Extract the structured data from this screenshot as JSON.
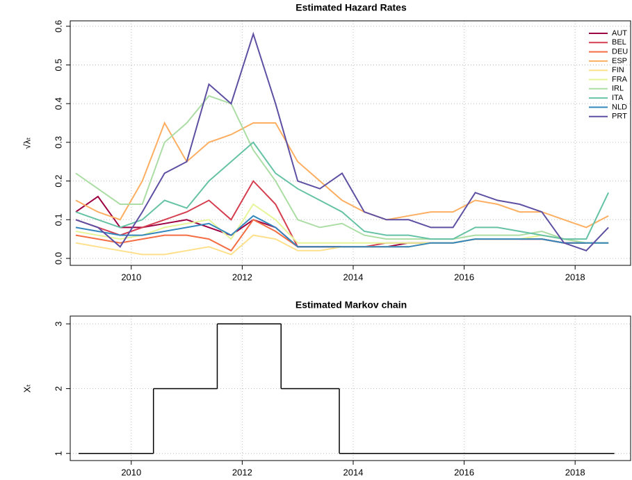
{
  "chart_data": [
    {
      "type": "line",
      "title": "Estimated Hazard Rates",
      "ylabel": "√λₜ",
      "x": [
        2009.0,
        2009.4,
        2009.8,
        2010.2,
        2010.6,
        2011.0,
        2011.4,
        2011.8,
        2012.2,
        2012.6,
        2013.0,
        2013.4,
        2013.8,
        2014.2,
        2014.6,
        2015.0,
        2015.4,
        2015.8,
        2016.2,
        2016.6,
        2017.0,
        2017.4,
        2017.8,
        2018.2,
        2018.6
      ],
      "series": [
        {
          "name": "AUT",
          "color": "#9E0142",
          "values": [
            0.12,
            0.16,
            0.08,
            0.08,
            0.09,
            0.1,
            0.08,
            0.06,
            0.1,
            0.08,
            0.03,
            0.03,
            0.03,
            0.03,
            0.03,
            0.04,
            0.04,
            0.04,
            0.05,
            0.05,
            0.05,
            0.05,
            0.04,
            0.04,
            0.04
          ]
        },
        {
          "name": "BEL",
          "color": "#D53E4F",
          "values": [
            0.1,
            0.08,
            0.06,
            0.08,
            0.1,
            0.12,
            0.15,
            0.1,
            0.2,
            0.14,
            0.03,
            0.03,
            0.03,
            0.03,
            0.04,
            0.04,
            0.04,
            0.04,
            0.05,
            0.05,
            0.05,
            0.05,
            0.04,
            0.04,
            0.04
          ]
        },
        {
          "name": "DEU",
          "color": "#F46D43",
          "values": [
            0.06,
            0.05,
            0.04,
            0.05,
            0.06,
            0.06,
            0.05,
            0.02,
            0.1,
            0.07,
            0.03,
            0.03,
            0.03,
            0.03,
            0.03,
            0.03,
            0.04,
            0.04,
            0.05,
            0.05,
            0.05,
            0.05,
            0.04,
            0.04,
            0.04
          ]
        },
        {
          "name": "ESP",
          "color": "#FDAE61",
          "values": [
            0.15,
            0.12,
            0.1,
            0.2,
            0.35,
            0.25,
            0.3,
            0.32,
            0.35,
            0.35,
            0.25,
            0.2,
            0.15,
            0.12,
            0.1,
            0.11,
            0.12,
            0.12,
            0.15,
            0.14,
            0.12,
            0.12,
            0.1,
            0.08,
            0.11
          ]
        },
        {
          "name": "FIN",
          "color": "#FEE08B",
          "values": [
            0.04,
            0.03,
            0.02,
            0.01,
            0.01,
            0.02,
            0.03,
            0.01,
            0.06,
            0.05,
            0.02,
            0.02,
            0.03,
            0.03,
            0.03,
            0.03,
            0.04,
            0.04,
            0.05,
            0.05,
            0.05,
            0.06,
            0.05,
            0.04,
            0.04
          ]
        },
        {
          "name": "FRA",
          "color": "#E6F598",
          "values": [
            0.07,
            0.06,
            0.05,
            0.06,
            0.08,
            0.09,
            0.1,
            0.05,
            0.14,
            0.1,
            0.04,
            0.04,
            0.04,
            0.04,
            0.04,
            0.04,
            0.04,
            0.04,
            0.05,
            0.05,
            0.05,
            0.06,
            0.05,
            0.04,
            0.04
          ]
        },
        {
          "name": "IRL",
          "color": "#ABDDA4",
          "values": [
            0.22,
            0.18,
            0.14,
            0.14,
            0.3,
            0.35,
            0.42,
            0.4,
            0.28,
            0.2,
            0.1,
            0.08,
            0.09,
            0.06,
            0.05,
            0.05,
            0.05,
            0.05,
            0.06,
            0.06,
            0.06,
            0.07,
            0.05,
            0.04,
            0.04
          ]
        },
        {
          "name": "ITA",
          "color": "#66C2A5",
          "values": [
            0.12,
            0.1,
            0.08,
            0.1,
            0.15,
            0.13,
            0.2,
            0.25,
            0.3,
            0.22,
            0.18,
            0.15,
            0.12,
            0.07,
            0.06,
            0.06,
            0.05,
            0.05,
            0.08,
            0.08,
            0.07,
            0.06,
            0.05,
            0.05,
            0.17
          ]
        },
        {
          "name": "NLD",
          "color": "#3288BD",
          "values": [
            0.08,
            0.07,
            0.06,
            0.06,
            0.07,
            0.08,
            0.09,
            0.06,
            0.11,
            0.08,
            0.03,
            0.03,
            0.03,
            0.03,
            0.03,
            0.03,
            0.04,
            0.04,
            0.05,
            0.05,
            0.05,
            0.05,
            0.04,
            0.04,
            0.04
          ]
        },
        {
          "name": "PRT",
          "color": "#5E4FA2",
          "values": [
            0.1,
            0.08,
            0.03,
            0.12,
            0.22,
            0.25,
            0.45,
            0.4,
            0.58,
            0.4,
            0.2,
            0.18,
            0.22,
            0.12,
            0.1,
            0.1,
            0.08,
            0.08,
            0.17,
            0.15,
            0.14,
            0.12,
            0.04,
            0.02,
            0.08
          ]
        }
      ],
      "xlim": [
        2008.9,
        2019.0
      ],
      "xticks": [
        2010,
        2012,
        2014,
        2016,
        2018
      ],
      "ylim": [
        -0.018,
        0.614
      ],
      "yticks": [
        {
          "value": 0,
          "label": "0.0"
        },
        0.1,
        0.2,
        0.3,
        0.4,
        0.5,
        0.6
      ],
      "grid": true,
      "legend": "top-right"
    },
    {
      "type": "step",
      "title": "Estimated Markov chain",
      "ylabel": "Xₜ",
      "color": "#000000",
      "x": [
        2009.05,
        2010.4,
        2011.55,
        2012.7,
        2013.75,
        2018.7
      ],
      "values": [
        1,
        2,
        3,
        2,
        1,
        1
      ],
      "xlim": [
        2008.9,
        2019.0
      ],
      "xticks": [
        2010,
        2012,
        2014,
        2016,
        2018
      ],
      "ylim": [
        0.89,
        3.12
      ],
      "yticks": [
        1,
        2,
        3
      ],
      "grid": true
    }
  ]
}
